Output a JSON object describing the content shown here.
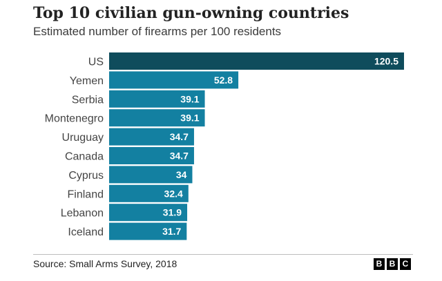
{
  "chart_data": {
    "type": "bar",
    "orientation": "horizontal",
    "title": "Top 10 civilian gun-owning countries",
    "subtitle": "Estimated number of firearms per 100 residents",
    "categories": [
      "US",
      "Yemen",
      "Serbia",
      "Montenegro",
      "Uruguay",
      "Canada",
      "Cyprus",
      "Finland",
      "Lebanon",
      "Iceland"
    ],
    "values": [
      120.5,
      52.8,
      39.1,
      39.1,
      34.7,
      34.7,
      34,
      32.4,
      31.9,
      31.7
    ],
    "value_labels": [
      "120.5",
      "52.8",
      "39.1",
      "39.1",
      "34.7",
      "34.7",
      "34",
      "32.4",
      "31.9",
      "31.7"
    ],
    "xlim": [
      0,
      120.5
    ],
    "grid": false,
    "legend": "none",
    "colors": {
      "highlight": "#0f4c5c",
      "bar": "#1380a1"
    }
  },
  "footer": {
    "source": "Source: Small Arms Survey, 2018",
    "logo_letters": [
      "B",
      "B",
      "C"
    ]
  }
}
